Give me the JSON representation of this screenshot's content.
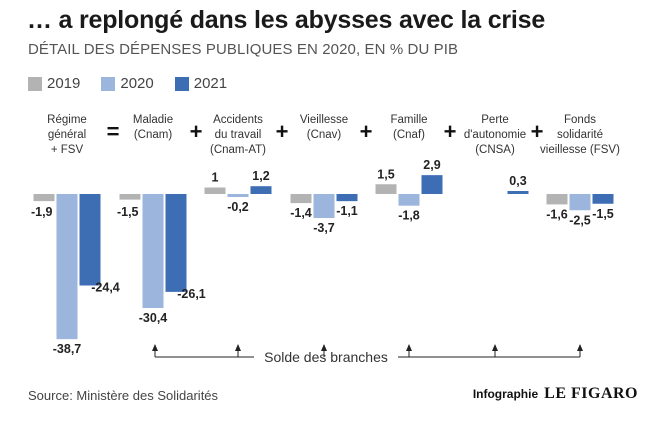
{
  "header": {
    "title": "… a replongé dans les abysses avec la crise",
    "subtitle": "DÉTAIL DES DÉPENSES PUBLIQUES EN 2020, EN % DU PIB"
  },
  "colors": {
    "2019": "#b3b3b3",
    "2020": "#9bb5dc",
    "2021": "#3d6db3",
    "operator": "#111111",
    "text": "#333333"
  },
  "chart_data": {
    "type": "bar",
    "legend": [
      "2019",
      "2020",
      "2021"
    ],
    "categories": [
      "Régime général + FSV",
      "Maladie (Cnam)",
      "Accidents du travail (Cnam-AT)",
      "Vieillesse (Cnav)",
      "Famille (Cnaf)",
      "Perte d'autonomie (CNSA)",
      "Fonds solidarité vieillesse (FSV)"
    ],
    "category_label_lines": [
      [
        "Régime",
        "général",
        "+ FSV"
      ],
      [
        "Maladie",
        "(Cnam)"
      ],
      [
        "Accidents",
        "du travail",
        "(Cnam-AT)"
      ],
      [
        "Vieillesse",
        "(Cnav)"
      ],
      [
        "Famille",
        "(Cnaf)"
      ],
      [
        "Perte",
        "d'autonomie",
        "(CNSA)"
      ],
      [
        "Fonds",
        "solidarité",
        "vieillesse (FSV)"
      ]
    ],
    "series": [
      {
        "name": "2019",
        "values": [
          -1.9,
          -1.5,
          1,
          -1.4,
          1.5,
          null,
          -1.6
        ],
        "labels": [
          "-1,9",
          "-1,5",
          "1",
          "-1,4",
          "1,5",
          "",
          "-1,6"
        ]
      },
      {
        "name": "2020",
        "values": [
          -38.7,
          -30.4,
          -0.2,
          -3.7,
          -1.8,
          null,
          -2.5
        ],
        "labels": [
          "-38,7",
          "-30,4",
          "-0,2",
          "-3,7",
          "-1,8",
          "",
          "-2,5"
        ]
      },
      {
        "name": "2021",
        "values": [
          -24.4,
          -26.1,
          1.2,
          -1.1,
          2.9,
          0.3,
          -1.5
        ],
        "labels": [
          "-24,4",
          "-26,1",
          "1,2",
          "-1,1",
          "2,9",
          "0,3",
          "-1,5"
        ]
      }
    ],
    "operators": [
      "=",
      "+",
      "+",
      "+",
      "+",
      "+"
    ],
    "annotation": "Solde des branches",
    "grid": false
  },
  "footer": {
    "source": "Source: Ministère des Solidarités",
    "credit_prefix": "Infographie",
    "credit_brand": "LE FIGARO"
  }
}
